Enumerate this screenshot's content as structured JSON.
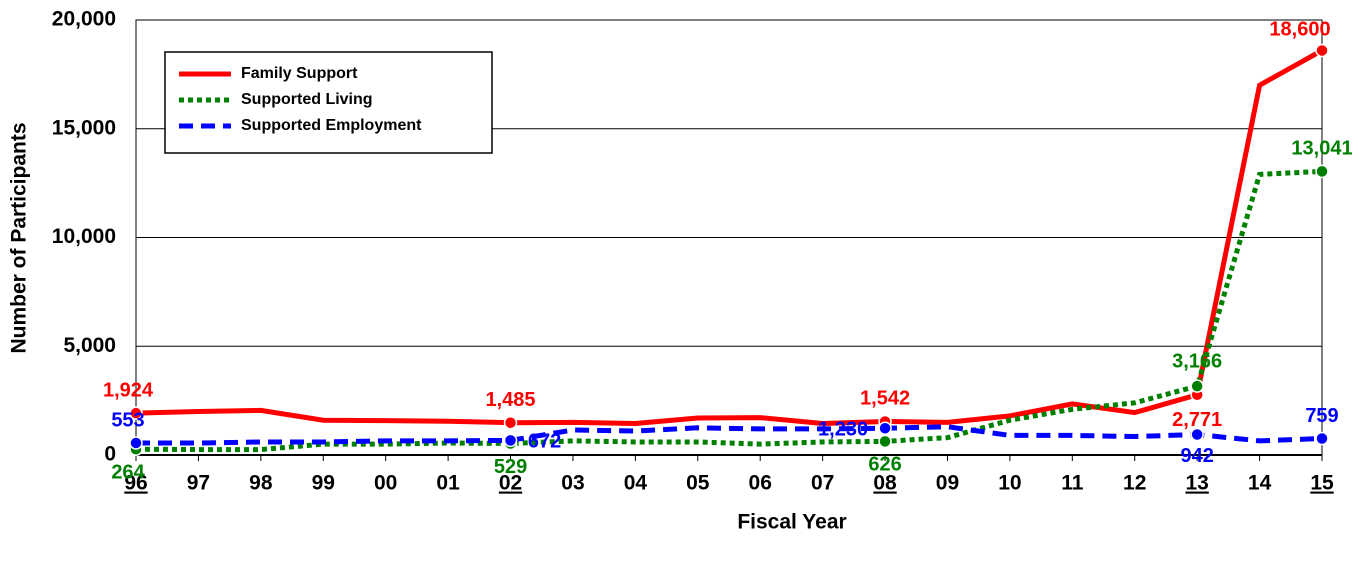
{
  "chart_data": {
    "type": "line",
    "x_label": "Fiscal Year",
    "y_label": "Number of Participants",
    "categories": [
      "96",
      "97",
      "98",
      "99",
      "00",
      "01",
      "02",
      "03",
      "04",
      "05",
      "06",
      "07",
      "08",
      "09",
      "10",
      "11",
      "12",
      "13",
      "14",
      "15"
    ],
    "ylim": [
      0,
      20000
    ],
    "yticks": [
      0,
      {
        "value": 5000,
        "label": "5,000"
      },
      {
        "value": 10000,
        "label": "10,000"
      },
      {
        "value": 15000,
        "label": "15,000"
      },
      {
        "value": 20000,
        "label": "20,000"
      }
    ],
    "grid": true,
    "legend": "upper left",
    "series": [
      {
        "name": "Family Support",
        "color": "#ff0000",
        "line_style": "solid",
        "values": [
          1924,
          2000,
          2050,
          1600,
          1580,
          1550,
          1485,
          1500,
          1450,
          1700,
          1720,
          1450,
          1542,
          1500,
          1800,
          2350,
          1950,
          2771,
          17000,
          18600
        ],
        "value_labels": [
          "1,924",
          null,
          null,
          null,
          null,
          null,
          "1,485",
          null,
          null,
          null,
          null,
          null,
          "1,542",
          null,
          null,
          null,
          null,
          "2,771",
          null,
          "18,600"
        ]
      },
      {
        "name": "Supported Living",
        "color": "#008000",
        "line_style": "dotted",
        "values": [
          264,
          250,
          250,
          500,
          500,
          550,
          529,
          650,
          600,
          600,
          500,
          600,
          626,
          800,
          1600,
          2100,
          2400,
          3166,
          12900,
          13041
        ],
        "value_labels": [
          "264",
          null,
          null,
          null,
          null,
          null,
          "529",
          null,
          null,
          null,
          null,
          null,
          "626",
          null,
          null,
          null,
          null,
          "3,166",
          null,
          "13,041"
        ]
      },
      {
        "name": "Supported Employment",
        "color": "#0000ff",
        "line_style": "dashed",
        "values": [
          553,
          550,
          600,
          600,
          650,
          650,
          672,
          1150,
          1100,
          1250,
          1200,
          1200,
          1230,
          1300,
          900,
          900,
          850,
          942,
          650,
          759
        ],
        "value_labels": [
          "553",
          null,
          null,
          null,
          null,
          null,
          "672",
          null,
          null,
          null,
          null,
          null,
          "1,230",
          null,
          null,
          null,
          null,
          "942",
          null,
          "759"
        ]
      }
    ]
  }
}
